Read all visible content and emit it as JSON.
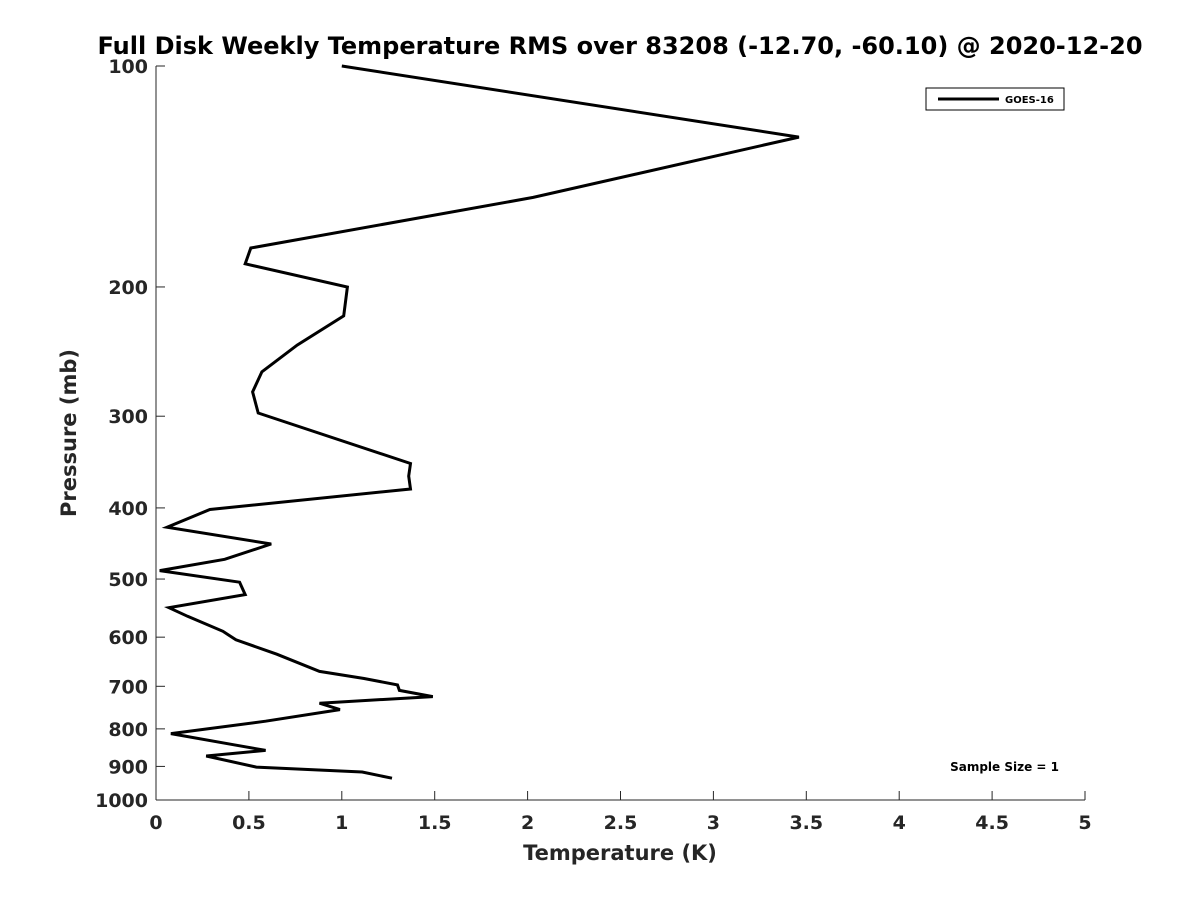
{
  "chart_data": {
    "type": "line",
    "title": "Full Disk Weekly Temperature RMS over 83208 (-12.70, -60.10) @ 2020-12-20",
    "xlabel": "Temperature (K)",
    "ylabel": "Pressure (mb)",
    "xlim": [
      0,
      5
    ],
    "ylim": [
      100,
      1000
    ],
    "y_scale": "log",
    "y_reversed": true,
    "x_ticks": [
      "0",
      "0.5",
      "1",
      "1.5",
      "2",
      "2.5",
      "3",
      "3.5",
      "4",
      "4.5",
      "5"
    ],
    "y_ticks": [
      "100",
      "200",
      "300",
      "400",
      "500",
      "600",
      "700",
      "800",
      "900",
      "1000"
    ],
    "legend_position": "top-right",
    "annotation": "Sample Size = 1",
    "line_color": "#000000",
    "series": [
      {
        "name": "GOES-16",
        "points": [
          [
            1.0,
            100
          ],
          [
            3.46,
            125
          ],
          [
            2.03,
            151
          ],
          [
            0.51,
            177
          ],
          [
            0.48,
            186
          ],
          [
            1.03,
            200
          ],
          [
            1.01,
            219
          ],
          [
            0.76,
            240
          ],
          [
            0.57,
            261
          ],
          [
            0.52,
            278
          ],
          [
            0.55,
            297
          ],
          [
            1.37,
            348
          ],
          [
            1.36,
            362
          ],
          [
            1.37,
            377
          ],
          [
            0.29,
            402
          ],
          [
            0.06,
            425
          ],
          [
            0.62,
            448
          ],
          [
            0.37,
            470
          ],
          [
            0.02,
            487
          ],
          [
            0.45,
            505
          ],
          [
            0.48,
            525
          ],
          [
            0.07,
            547
          ],
          [
            0.17,
            562
          ],
          [
            0.36,
            589
          ],
          [
            0.43,
            605
          ],
          [
            0.65,
            633
          ],
          [
            0.88,
            668
          ],
          [
            1.12,
            683
          ],
          [
            1.3,
            697
          ],
          [
            1.31,
            709
          ],
          [
            1.49,
            723
          ],
          [
            0.88,
            738
          ],
          [
            0.99,
            753
          ],
          [
            0.59,
            781
          ],
          [
            0.08,
            812
          ],
          [
            0.42,
            841
          ],
          [
            0.59,
            856
          ],
          [
            0.27,
            871
          ],
          [
            0.54,
            902
          ],
          [
            1.11,
            916
          ],
          [
            1.27,
            934
          ]
        ]
      }
    ]
  }
}
